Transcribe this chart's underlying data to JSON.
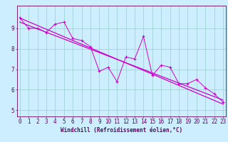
{
  "title": "",
  "xlabel": "Windchill (Refroidissement éolien,°C)",
  "ylabel": "",
  "bg_color": "#cceeff",
  "line_color": "#cc00cc",
  "trend_color": "#cc00cc",
  "grid_color": "#99cccc",
  "axis_color": "#660066",
  "tick_color": "#660066",
  "x_data": [
    0,
    1,
    2,
    3,
    4,
    5,
    6,
    7,
    8,
    9,
    10,
    11,
    12,
    13,
    14,
    15,
    16,
    17,
    18,
    19,
    20,
    21,
    22,
    23
  ],
  "y_data": [
    9.5,
    9.0,
    9.0,
    8.8,
    9.2,
    9.3,
    8.5,
    8.4,
    8.1,
    6.9,
    7.1,
    6.4,
    7.6,
    7.5,
    8.6,
    6.7,
    7.2,
    7.1,
    6.3,
    6.3,
    6.5,
    6.1,
    5.8,
    5.4
  ],
  "trend_x": [
    0,
    23
  ],
  "trend_y": [
    9.5,
    5.3
  ],
  "trend2_x": [
    0,
    23
  ],
  "trend2_y": [
    9.3,
    5.5
  ],
  "xlim": [
    -0.3,
    23.3
  ],
  "ylim": [
    4.7,
    10.1
  ],
  "xticks": [
    0,
    1,
    2,
    3,
    4,
    5,
    6,
    7,
    8,
    9,
    10,
    11,
    12,
    13,
    14,
    15,
    16,
    17,
    18,
    19,
    20,
    21,
    22,
    23
  ],
  "yticks": [
    5,
    6,
    7,
    8,
    9
  ],
  "fontsize_tick": 5.5,
  "fontsize_label": 5.5
}
